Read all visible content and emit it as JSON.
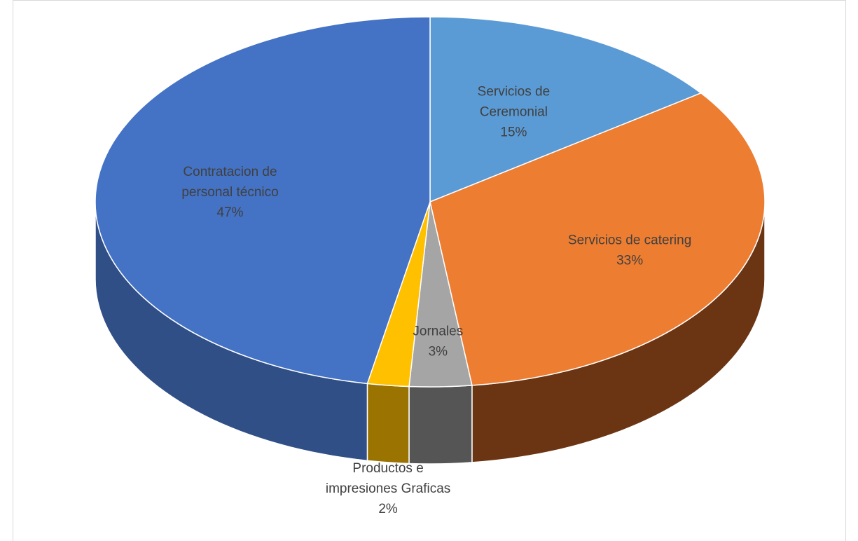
{
  "chart_data": {
    "type": "pie",
    "style": "3d",
    "title": "",
    "start_angle_deg": 90,
    "direction": "clockwise",
    "categories": [
      "Servicios de Ceremonial",
      "Servicios de catering",
      "Jornales",
      "Productos e impresiones Graficas",
      "Contratacion de personal técnico"
    ],
    "values": [
      15,
      33,
      3,
      2,
      47
    ],
    "unit": "%",
    "labels": [
      {
        "lines": [
          "Servicios de",
          "Ceremonial"
        ],
        "percent": "15%"
      },
      {
        "lines": [
          "Servicios de catering"
        ],
        "percent": "33%"
      },
      {
        "lines": [
          "Jornales"
        ],
        "percent": "3%"
      },
      {
        "lines": [
          "Productos e",
          "impresiones Graficas"
        ],
        "percent": "2%"
      },
      {
        "lines": [
          "Contratacion de",
          "personal técnico"
        ],
        "percent": "47%"
      }
    ],
    "colors": {
      "top": [
        "#5b9bd5",
        "#ed7d31",
        "#a5a5a5",
        "#ffc000",
        "#4472c4"
      ],
      "side": [
        "#3a6e9e",
        "#6b3514",
        "#555555",
        "#9a7300",
        "#2f4f86"
      ]
    },
    "legend": "none"
  }
}
